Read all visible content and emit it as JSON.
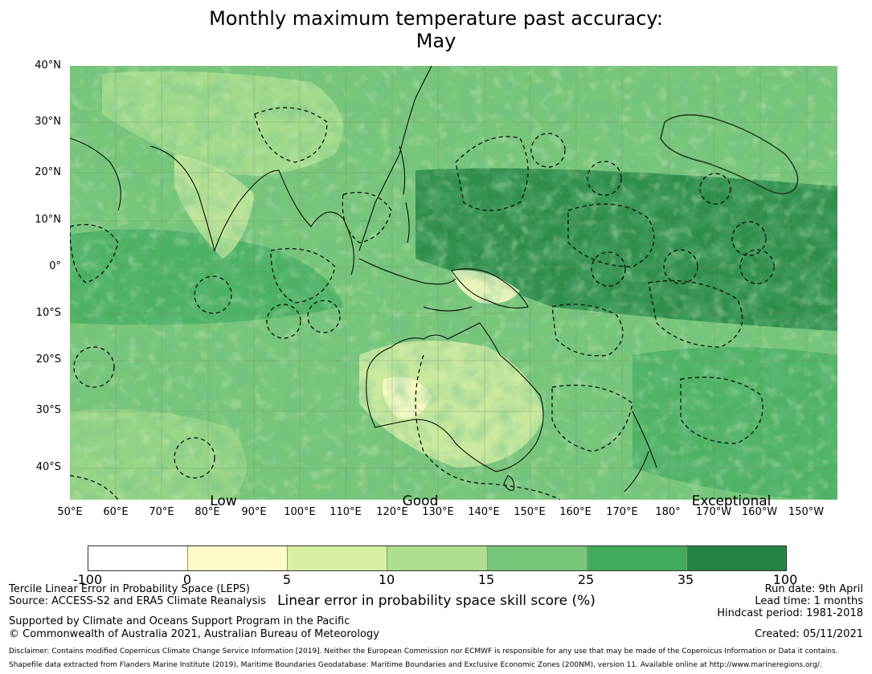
{
  "title": {
    "line1": "Monthly maximum temperature past accuracy:",
    "line2": "May"
  },
  "map": {
    "lat_labels": [
      "40°N",
      "30°N",
      "20°N",
      "10°N",
      "0°",
      "10°S",
      "20°S",
      "30°S",
      "40°S"
    ],
    "lon_labels": [
      "50°E",
      "60°E",
      "70°E",
      "80°E",
      "90°E",
      "100°E",
      "110°E",
      "120°E",
      "130°E",
      "140°E",
      "150°E",
      "160°E",
      "170°E",
      "180°",
      "170°W",
      "160°W",
      "150°W"
    ],
    "category_labels": [
      "Low",
      "Good",
      "Exceptional"
    ]
  },
  "colorbar": {
    "label": "Linear error in probability space skill score (%)",
    "ticks": [
      "-100",
      "0",
      "5",
      "10",
      "15",
      "25",
      "35",
      "100"
    ],
    "colors": [
      "#ffffff",
      "#fdfbc8",
      "#d9efa3",
      "#addf8e",
      "#78c679",
      "#41ab5d",
      "#238443"
    ]
  },
  "info_left": {
    "line1": "Tercile Linear Error in Probability Space (LEPS)",
    "line2": "Source: ACCESS-S2 and ERA5 Climate Reanalysis",
    "line3": "Supported by Climate and Oceans Support Program in the Pacific",
    "line4": "© Commonwealth of Australia 2021, Australian Bureau of Meteorology"
  },
  "info_right": {
    "run_date": "Run date: 9th April",
    "lead_time": "Lead time: 1 months",
    "hindcast": "Hindcast period: 1981-2018",
    "created": "Created: 05/11/2021"
  },
  "disclaimer": {
    "line1": "Disclaimer: Contains modified Copernicus Climate Change Service Information [2019]. Neither the European Commission nor ECMWF is responsible for any use that may be made of the Copernicus Information or Data it contains.",
    "line2": "Shapefile data extracted from Flanders Marine Institute (2019), Maritime Boundaries Geodatabase: Maritime Boundaries and Exclusive Economic Zones (200NM), version 11. Available online at http://www.marineregions.org/."
  }
}
